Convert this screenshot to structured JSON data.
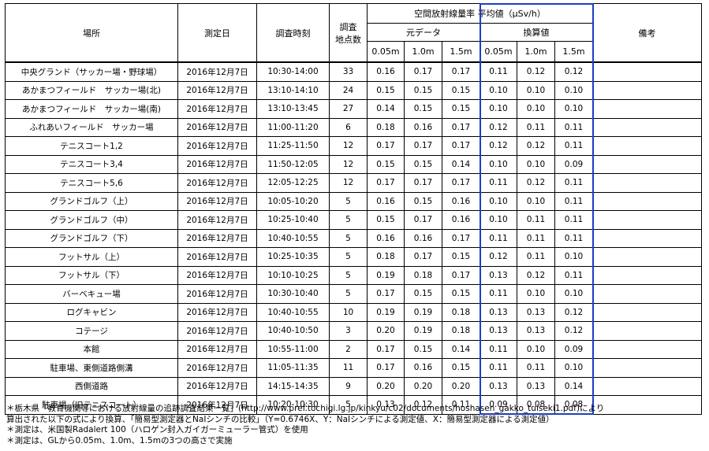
{
  "headers": {
    "place": "場所",
    "date": "測定日",
    "time": "調査時刻",
    "points_line1": "調査",
    "points_line2": "地点数",
    "dose_title": "空間放射線量率 平均値（μSv/h）",
    "original": "元データ",
    "converted": "換算値",
    "remarks": "備考",
    "heights": [
      "0.05m",
      "1.0m",
      "1.5m",
      "0.05m",
      "1.0m",
      "1.5m"
    ]
  },
  "rows": [
    {
      "place": "中央グランド（サッカー場・野球場）",
      "date": "2016年12月7日",
      "time": "10:30-14:00",
      "points": "33",
      "o1": "0.16",
      "o2": "0.17",
      "o3": "0.17",
      "c1": "0.11",
      "c2": "0.12",
      "c3": "0.12",
      "note": ""
    },
    {
      "place": "あかまつフィールド　サッカー場(北)",
      "date": "2016年12月7日",
      "time": "13:10-14:10",
      "points": "24",
      "o1": "0.15",
      "o2": "0.15",
      "o3": "0.15",
      "c1": "0.10",
      "c2": "0.10",
      "c3": "0.10",
      "note": ""
    },
    {
      "place": "あかまつフィールド　サッカー場(南)",
      "date": "2016年12月7日",
      "time": "13:10-13:45",
      "points": "27",
      "o1": "0.14",
      "o2": "0.15",
      "o3": "0.15",
      "c1": "0.10",
      "c2": "0.10",
      "c3": "0.10",
      "note": ""
    },
    {
      "place": "ふれあいフィールド　サッカー場",
      "date": "2016年12月7日",
      "time": "11:00-11:20",
      "points": "6",
      "o1": "0.18",
      "o2": "0.16",
      "o3": "0.17",
      "c1": "0.12",
      "c2": "0.11",
      "c3": "0.11",
      "note": ""
    },
    {
      "place": "テニスコート1,2",
      "date": "2016年12月7日",
      "time": "11:25-11:50",
      "points": "12",
      "o1": "0.17",
      "o2": "0.17",
      "o3": "0.17",
      "c1": "0.12",
      "c2": "0.12",
      "c3": "0.11",
      "note": ""
    },
    {
      "place": "テニスコート3,4",
      "date": "2016年12月7日",
      "time": "11:50-12:05",
      "points": "12",
      "o1": "0.15",
      "o2": "0.15",
      "o3": "0.14",
      "c1": "0.10",
      "c2": "0.10",
      "c3": "0.09",
      "note": ""
    },
    {
      "place": "テニスコート5,6",
      "date": "2016年12月7日",
      "time": "12:05-12:25",
      "points": "12",
      "o1": "0.17",
      "o2": "0.17",
      "o3": "0.17",
      "c1": "0.11",
      "c2": "0.12",
      "c3": "0.11",
      "note": ""
    },
    {
      "place": "グランドゴルフ（上）",
      "date": "2016年12月7日",
      "time": "10:05-10:20",
      "points": "5",
      "o1": "0.16",
      "o2": "0.15",
      "o3": "0.16",
      "c1": "0.10",
      "c2": "0.10",
      "c3": "0.11",
      "note": ""
    },
    {
      "place": "グランドゴルフ（中）",
      "date": "2016年12月7日",
      "time": "10:25-10:40",
      "points": "5",
      "o1": "0.15",
      "o2": "0.17",
      "o3": "0.16",
      "c1": "0.10",
      "c2": "0.11",
      "c3": "0.11",
      "note": ""
    },
    {
      "place": "グランドゴルフ（下）",
      "date": "2016年12月7日",
      "time": "10:40-10:55",
      "points": "5",
      "o1": "0.16",
      "o2": "0.16",
      "o3": "0.17",
      "c1": "0.11",
      "c2": "0.11",
      "c3": "0.11",
      "note": ""
    },
    {
      "place": "フットサル（上）",
      "date": "2016年12月7日",
      "time": "10:25-10:35",
      "points": "5",
      "o1": "0.18",
      "o2": "0.17",
      "o3": "0.15",
      "c1": "0.12",
      "c2": "0.11",
      "c3": "0.10",
      "note": ""
    },
    {
      "place": "フットサル（下）",
      "date": "2016年12月7日",
      "time": "10:10-10:25",
      "points": "5",
      "o1": "0.19",
      "o2": "0.18",
      "o3": "0.17",
      "c1": "0.13",
      "c2": "0.12",
      "c3": "0.11",
      "note": ""
    },
    {
      "place": "バーベキュー場",
      "date": "2016年12月7日",
      "time": "10:30-10:40",
      "points": "5",
      "o1": "0.17",
      "o2": "0.15",
      "o3": "0.15",
      "c1": "0.11",
      "c2": "0.10",
      "c3": "0.10",
      "note": ""
    },
    {
      "place": "ログキャビン",
      "date": "2016年12月7日",
      "time": "10:40-10:55",
      "points": "10",
      "o1": "0.19",
      "o2": "0.19",
      "o3": "0.18",
      "c1": "0.13",
      "c2": "0.13",
      "c3": "0.12",
      "note": ""
    },
    {
      "place": "コテージ",
      "date": "2016年12月7日",
      "time": "10:40-10:50",
      "points": "3",
      "o1": "0.20",
      "o2": "0.19",
      "o3": "0.18",
      "c1": "0.13",
      "c2": "0.13",
      "c3": "0.12",
      "note": ""
    },
    {
      "place": "本館",
      "date": "2016年12月7日",
      "time": "10:55-11:00",
      "points": "2",
      "o1": "0.17",
      "o2": "0.15",
      "o3": "0.14",
      "c1": "0.11",
      "c2": "0.10",
      "c3": "0.09",
      "note": ""
    },
    {
      "place": "駐車場、東側道路側溝",
      "date": "2016年12月7日",
      "time": "11:05-11:35",
      "points": "11",
      "o1": "0.17",
      "o2": "0.16",
      "o3": "0.15",
      "c1": "0.11",
      "c2": "0.11",
      "c3": "0.10",
      "note": ""
    },
    {
      "place": "西側道路",
      "date": "2016年12月7日",
      "time": "14:15-14:35",
      "points": "9",
      "o1": "0.20",
      "o2": "0.20",
      "o3": "0.20",
      "c1": "0.13",
      "c2": "0.13",
      "c3": "0.14",
      "note": ""
    },
    {
      "place": "駐車場（旧テニスコート）",
      "date": "2016年12月7日",
      "time": "10:20-10:30",
      "points": "5",
      "o1": "0.13",
      "o2": "0.12",
      "o3": "0.11",
      "c1": "0.09",
      "c2": "0.08",
      "c3": "0.08",
      "note": ""
    }
  ],
  "notes": [
    "＊栃木県「教育機関等における放射線量の追跡調査結果一覧」(http://www.pref.tochigi.lg.jp/kinkyu/c02/documents/hoshasen_gakko_tuiseki1.pdf)により",
    "算出された以下の式により換算、「簡易型測定器とNaIシンチの比較」（Y=0.6746X、Y：NaIシンチによる測定値、X：簡易型測定器による測定値）",
    "＊測定は、米国製Radalert 100（ハロゲン封入ガイガーミューラー管式）を使用",
    "＊測定は、GLから0.05m、1.0m、1.5mの3つの高さで実施"
  ],
  "colors": {
    "highlight_box": "#1f3fbf",
    "border": "#000000"
  }
}
